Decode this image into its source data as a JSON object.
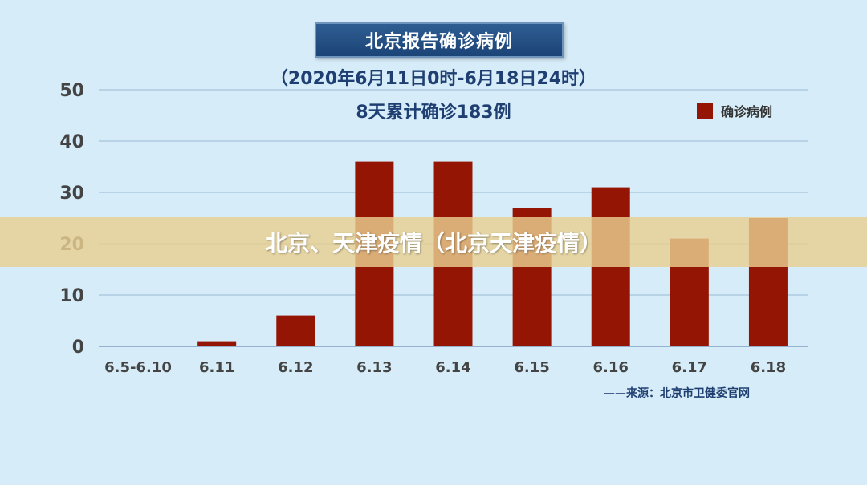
{
  "chart_data": {
    "type": "bar",
    "title": "北京报告确诊病例",
    "subtitle": "（2020年6月11日0时-6月18日24时）",
    "annotation": "8天累计确诊183例",
    "categories": [
      "6.5-6.10",
      "6.11",
      "6.12",
      "6.13",
      "6.14",
      "6.15",
      "6.16",
      "6.17",
      "6.18"
    ],
    "series": [
      {
        "name": "确诊病例",
        "values": [
          0,
          1,
          6,
          36,
          36,
          27,
          31,
          21,
          25
        ]
      }
    ],
    "ylim": [
      0,
      50
    ],
    "yticks": [
      0,
      10,
      20,
      30,
      40,
      50
    ],
    "grid": true,
    "legend_position": "top-right",
    "source_note": "——来源：北京市卫健委官网"
  },
  "colors": {
    "background": "#d6ecf8",
    "bar": "#941504",
    "title_box": "#1b4477",
    "title_text": "#1f3f72",
    "grid": "#9ab7d3"
  },
  "banner": {
    "text": "北京、天津疫情（北京天津疫情）"
  }
}
